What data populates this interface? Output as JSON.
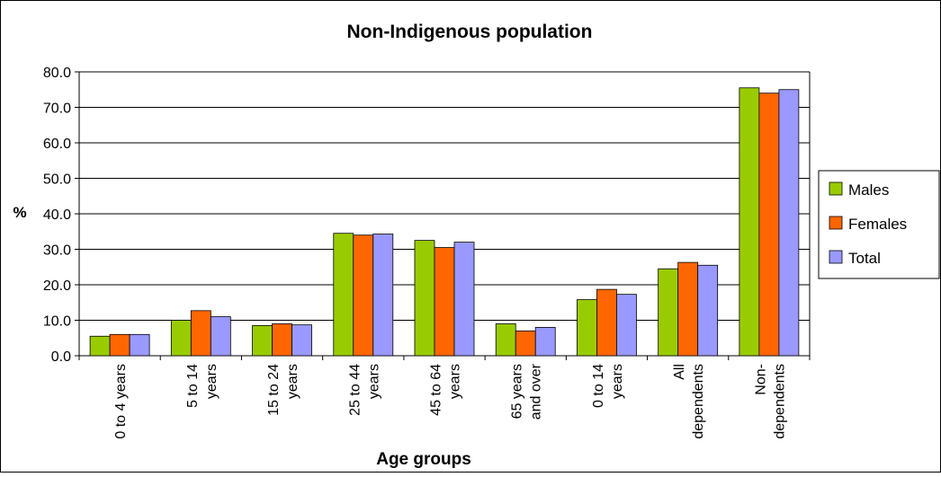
{
  "chart_data": {
    "type": "bar",
    "title": "Non-Indigenous population",
    "xlabel": "Age groups",
    "ylabel": "%",
    "ylim": [
      0,
      80
    ],
    "yticks": [
      "0.0",
      "10.0",
      "20.0",
      "30.0",
      "40.0",
      "50.0",
      "60.0",
      "70.0",
      "80.0"
    ],
    "grid": true,
    "legend_position": "right",
    "categories": [
      [
        "0 to 4 years"
      ],
      [
        "5 to 14",
        "years"
      ],
      [
        "15 to 24",
        "years"
      ],
      [
        "25 to 44",
        "years"
      ],
      [
        "45 to 64",
        "years"
      ],
      [
        "65 years",
        "and over"
      ],
      [
        "0 to 14",
        "years"
      ],
      [
        "All",
        "dependents"
      ],
      [
        "Non-",
        "dependents"
      ]
    ],
    "series": [
      {
        "name": "Males",
        "color": "#99CC00",
        "values": [
          5.5,
          10.0,
          8.5,
          34.5,
          32.5,
          9.0,
          15.8,
          24.5,
          75.5
        ]
      },
      {
        "name": "Females",
        "color": "#FF6600",
        "values": [
          6.0,
          12.7,
          9.0,
          34.0,
          30.5,
          7.0,
          18.7,
          26.3,
          74.0
        ]
      },
      {
        "name": "Total",
        "color": "#9999FF",
        "values": [
          6.0,
          11.0,
          8.7,
          34.3,
          32.0,
          8.0,
          17.3,
          25.5,
          75.0
        ]
      }
    ]
  }
}
